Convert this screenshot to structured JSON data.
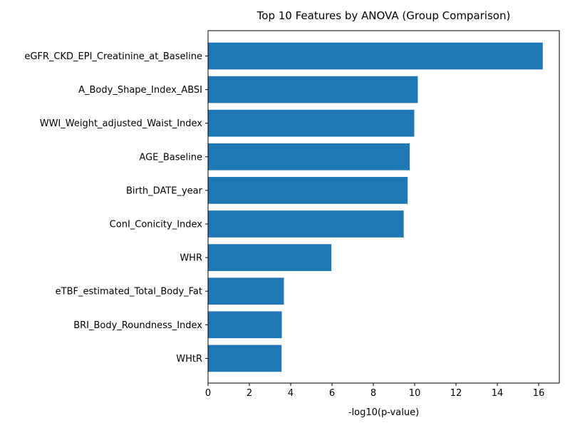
{
  "chart_data": {
    "type": "bar",
    "orientation": "horizontal",
    "title": "Top 10 Features by ANOVA (Group Comparison)",
    "xlabel": "-log10(p-value)",
    "ylabel": "",
    "xlim": [
      0,
      17
    ],
    "xticks": [
      0,
      2,
      4,
      6,
      8,
      10,
      12,
      14,
      16
    ],
    "grid": false,
    "bar_color": "#1f77b4",
    "categories": [
      "eGFR_CKD_EPI_Creatinine_at_Baseline",
      "A_Body_Shape_Index_ABSI",
      "WWI_Weight_adjusted_Waist_Index",
      "AGE_Baseline",
      "Birth_DATE_year",
      "ConI_Conicity_Index",
      "WHR",
      "eTBF_estimated_Total_Body_Fat",
      "BRI_Body_Roundness_Index",
      "WHtR"
    ],
    "values": [
      16.2,
      10.15,
      9.98,
      9.76,
      9.66,
      9.47,
      5.97,
      3.67,
      3.57,
      3.56
    ]
  }
}
